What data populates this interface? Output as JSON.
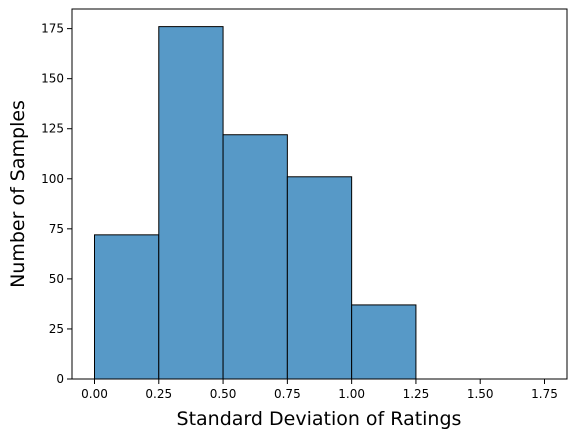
{
  "chart_data": {
    "type": "bar",
    "subtype": "histogram",
    "xlabel": "Standard Deviation of Ratings",
    "ylabel": "Number of Samples",
    "bins": [
      {
        "x0": 0.0,
        "x1": 0.25,
        "count": 72
      },
      {
        "x0": 0.25,
        "x1": 0.5,
        "count": 176
      },
      {
        "x0": 0.5,
        "x1": 0.75,
        "count": 122
      },
      {
        "x0": 0.75,
        "x1": 1.0,
        "count": 101
      },
      {
        "x0": 1.0,
        "x1": 1.25,
        "count": 37
      },
      {
        "x0": 1.25,
        "x1": 1.5,
        "count": 0
      },
      {
        "x0": 1.5,
        "x1": 1.75,
        "count": 0
      }
    ],
    "xlim": [
      -0.0875,
      1.8375
    ],
    "ylim": [
      0,
      184.8
    ],
    "xticks": [
      0.0,
      0.25,
      0.5,
      0.75,
      1.0,
      1.25,
      1.5,
      1.75
    ],
    "xtick_labels": [
      "0.00",
      "0.25",
      "0.50",
      "0.75",
      "1.00",
      "1.25",
      "1.50",
      "1.75"
    ],
    "yticks": [
      0,
      25,
      50,
      75,
      100,
      125,
      150,
      175
    ],
    "ytick_labels": [
      "0",
      "25",
      "50",
      "75",
      "100",
      "125",
      "150",
      "175"
    ],
    "grid": false,
    "legend": "none",
    "colors": {
      "bar_fill": "#5799c7",
      "bar_edge": "#000000",
      "axes": "#000000"
    }
  }
}
